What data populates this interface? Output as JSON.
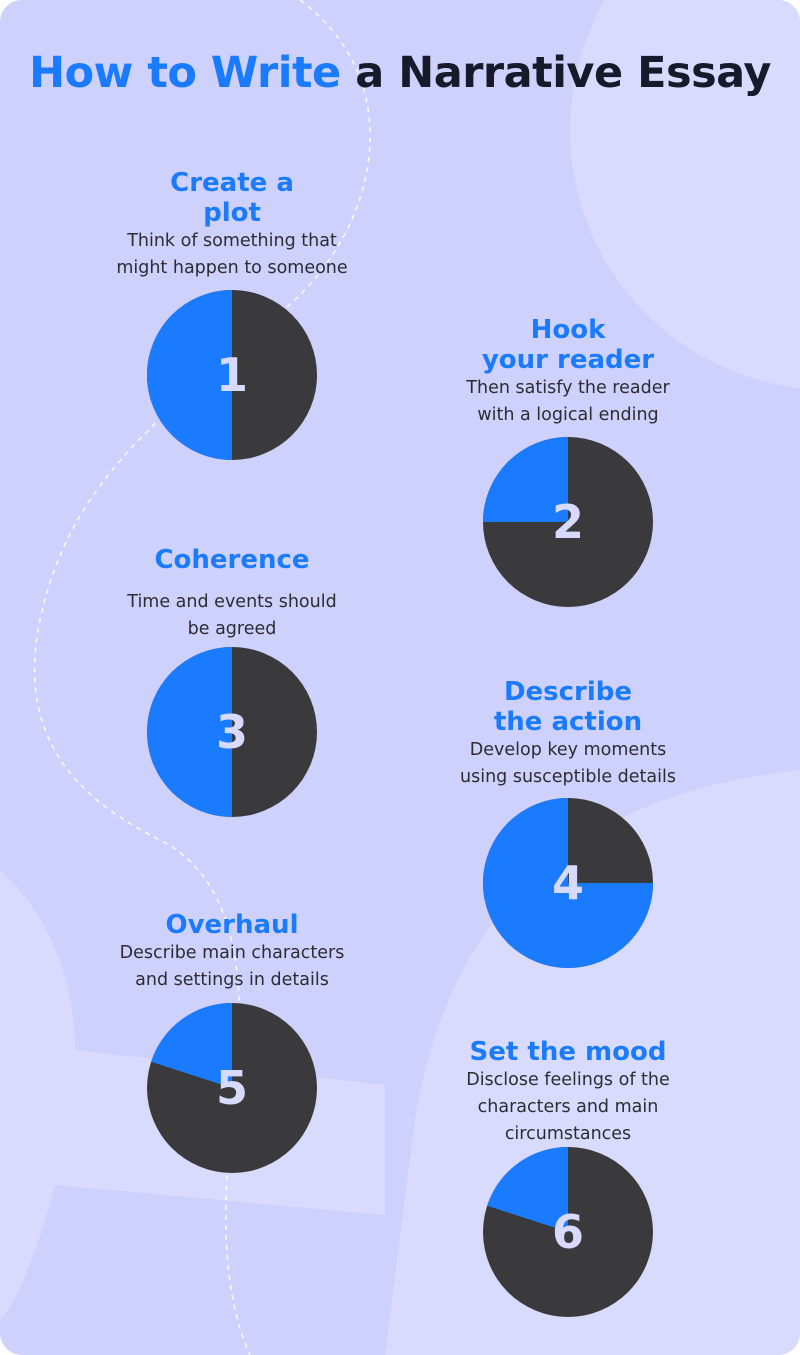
{
  "title": {
    "highlight": "How to Write",
    "rest": "a Narrative Essay"
  },
  "colors": {
    "background": "#cdd1fb",
    "accent": "#1b7bff",
    "dark": "#3a3a3c",
    "number": "#d7dafd"
  },
  "steps": [
    {
      "number": "1",
      "heading": [
        "Create a",
        "plot"
      ],
      "desc": [
        "Think of something that",
        "might happen to someone"
      ],
      "fill": 0.5
    },
    {
      "number": "2",
      "heading": [
        "Hook",
        "your reader"
      ],
      "desc": [
        "Then satisfy the reader",
        "with a logical ending"
      ],
      "fill": 0.25
    },
    {
      "number": "3",
      "heading": [
        "Coherence"
      ],
      "desc": [
        "Time and events should",
        "be agreed"
      ],
      "fill": 0.5
    },
    {
      "number": "4",
      "heading": [
        "Describe",
        "the action"
      ],
      "desc": [
        "Develop key moments",
        "using susceptible details"
      ],
      "fill": 0.75
    },
    {
      "number": "5",
      "heading": [
        "Overhaul"
      ],
      "desc": [
        "Describe main characters",
        "and settings in details"
      ],
      "fill": 0.2
    },
    {
      "number": "6",
      "heading": [
        "Set the mood"
      ],
      "desc": [
        "Disclose feelings of the",
        "characters and main",
        "circumstances"
      ],
      "fill": 0.2
    }
  ]
}
